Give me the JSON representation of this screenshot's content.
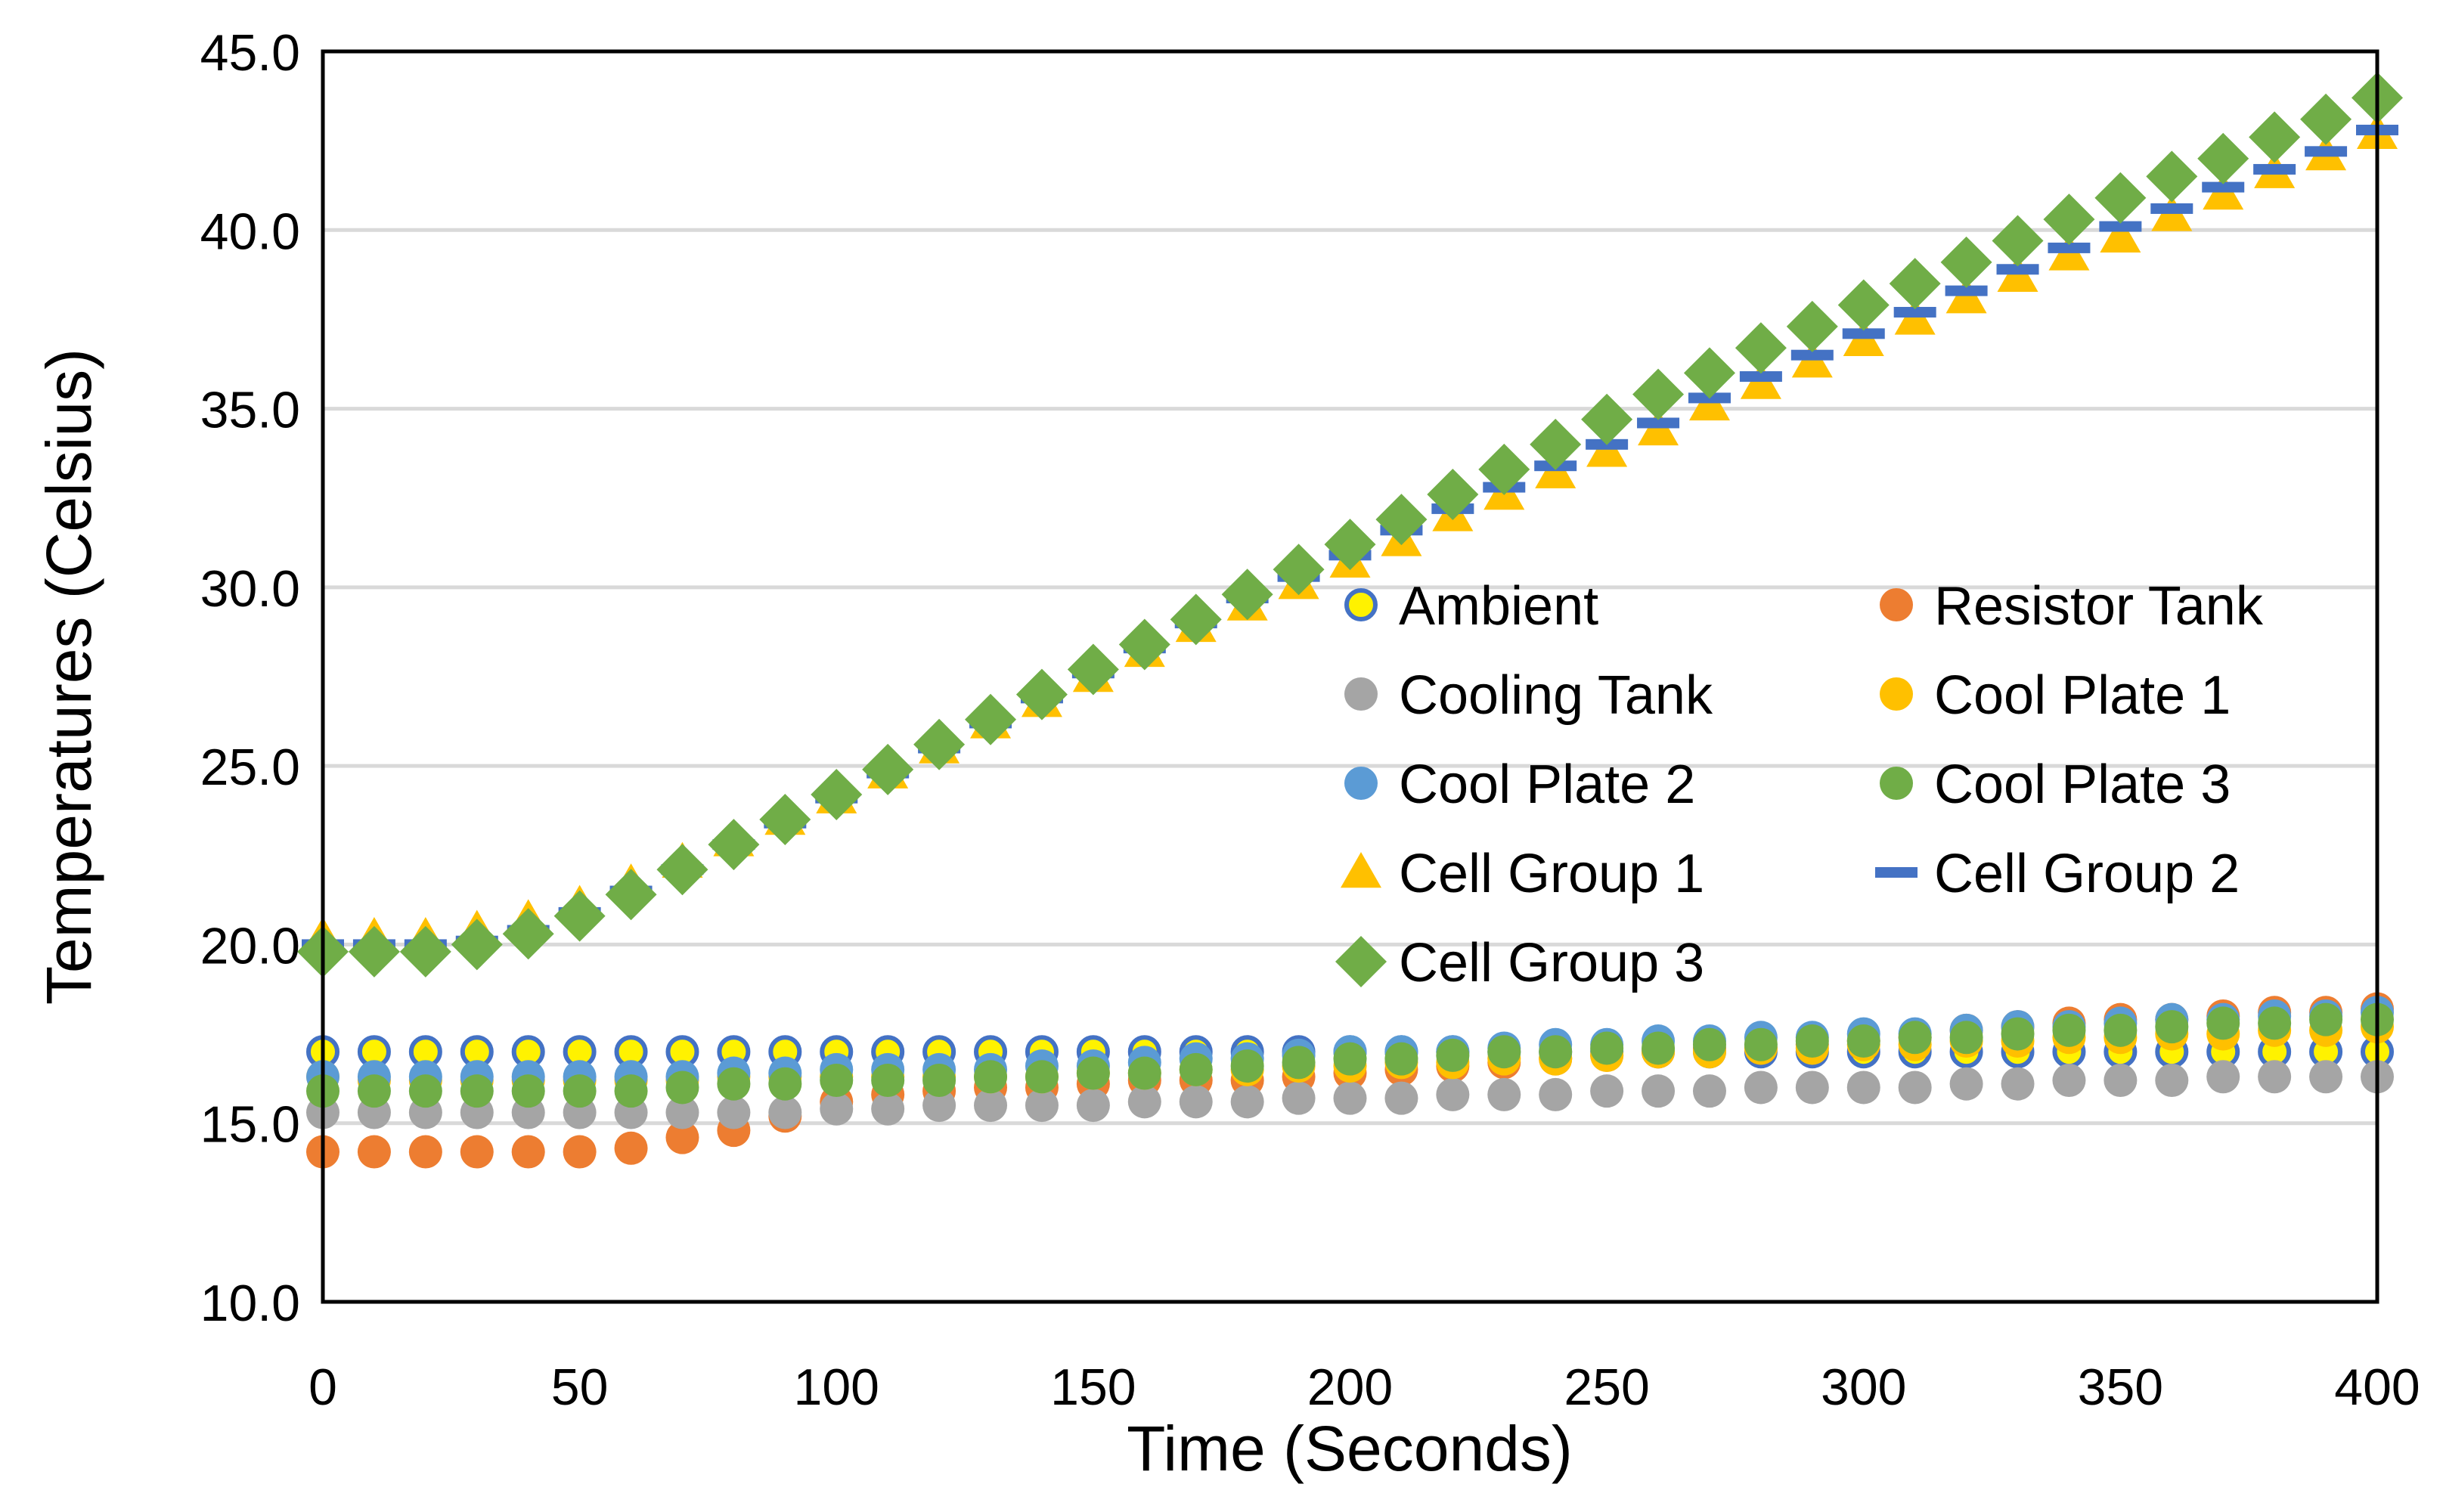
{
  "chart_data": {
    "type": "scatter",
    "title": "",
    "xlabel": "Time (Seconds)",
    "ylabel": "Temperatures (Celsius)",
    "xlim": [
      0,
      400
    ],
    "ylim": [
      10,
      45
    ],
    "x_ticks": [
      "0",
      "50",
      "100",
      "150",
      "200",
      "250",
      "300",
      "350",
      "400"
    ],
    "y_ticks": [
      "10.0",
      "15.0",
      "20.0",
      "25.0",
      "30.0",
      "35.0",
      "40.0",
      "45.0"
    ],
    "grid": "horizontal",
    "legend_position": "center-right",
    "x": [
      0,
      10,
      20,
      30,
      40,
      50,
      60,
      70,
      80,
      90,
      100,
      110,
      120,
      130,
      140,
      150,
      160,
      170,
      180,
      190,
      200,
      210,
      220,
      230,
      240,
      250,
      260,
      270,
      280,
      290,
      300,
      310,
      320,
      330,
      340,
      350,
      360,
      370,
      380,
      390,
      400
    ],
    "series": [
      {
        "name": "Ambient",
        "marker": "circle-open",
        "color": "#FFF200",
        "edge": "#4472C4",
        "values": [
          17.0,
          17.0,
          17.0,
          17.0,
          17.0,
          17.0,
          17.0,
          17.0,
          17.0,
          17.0,
          17.0,
          17.0,
          17.0,
          17.0,
          17.0,
          17.0,
          17.0,
          17.0,
          17.0,
          17.0,
          17.0,
          17.0,
          17.0,
          17.0,
          17.0,
          17.0,
          17.0,
          17.0,
          17.0,
          17.0,
          17.0,
          17.0,
          17.0,
          17.0,
          17.0,
          17.0,
          17.0,
          17.0,
          17.0,
          17.0,
          17.0
        ]
      },
      {
        "name": "Resistor Tank",
        "marker": "circle",
        "color": "#ED7D31",
        "values": [
          14.2,
          14.2,
          14.2,
          14.2,
          14.2,
          14.2,
          14.3,
          14.6,
          14.8,
          15.2,
          15.6,
          15.8,
          15.9,
          16.0,
          16.0,
          16.1,
          16.2,
          16.2,
          16.2,
          16.3,
          16.4,
          16.5,
          16.6,
          16.7,
          16.8,
          16.9,
          17.0,
          17.1,
          17.1,
          17.2,
          17.3,
          17.4,
          17.6,
          17.7,
          17.8,
          17.9,
          17.9,
          18.0,
          18.1,
          18.1,
          18.2
        ]
      },
      {
        "name": "Cooling Tank",
        "marker": "circle",
        "color": "#A5A5A5",
        "values": [
          15.3,
          15.3,
          15.3,
          15.3,
          15.3,
          15.3,
          15.3,
          15.3,
          15.3,
          15.3,
          15.4,
          15.4,
          15.5,
          15.5,
          15.5,
          15.5,
          15.6,
          15.6,
          15.6,
          15.7,
          15.7,
          15.7,
          15.8,
          15.8,
          15.8,
          15.9,
          15.9,
          15.9,
          16.0,
          16.0,
          16.0,
          16.0,
          16.1,
          16.1,
          16.2,
          16.2,
          16.2,
          16.3,
          16.3,
          16.3,
          16.3
        ]
      },
      {
        "name": "Cool Plate 1",
        "marker": "circle",
        "color": "#FFC000",
        "values": [
          16.3,
          16.2,
          16.2,
          16.2,
          16.2,
          16.2,
          16.2,
          16.2,
          16.3,
          16.3,
          16.3,
          16.3,
          16.3,
          16.3,
          16.3,
          16.4,
          16.4,
          16.5,
          16.5,
          16.6,
          16.6,
          16.7,
          16.7,
          16.8,
          16.8,
          16.9,
          17.0,
          17.0,
          17.1,
          17.1,
          17.2,
          17.2,
          17.3,
          17.3,
          17.4,
          17.4,
          17.5,
          17.5,
          17.6,
          17.6,
          17.7
        ]
      },
      {
        "name": "Cool Plate 2",
        "marker": "circle",
        "color": "#5B9BD5",
        "values": [
          16.3,
          16.3,
          16.3,
          16.3,
          16.3,
          16.3,
          16.3,
          16.3,
          16.4,
          16.4,
          16.5,
          16.5,
          16.5,
          16.5,
          16.6,
          16.6,
          16.7,
          16.8,
          16.8,
          16.9,
          17.0,
          17.0,
          17.0,
          17.1,
          17.2,
          17.2,
          17.3,
          17.3,
          17.4,
          17.4,
          17.5,
          17.5,
          17.6,
          17.7,
          17.7,
          17.8,
          17.9,
          17.9,
          18.0,
          18.0,
          18.1
        ]
      },
      {
        "name": "Cool Plate 3",
        "marker": "circle",
        "color": "#70AD47",
        "values": [
          15.9,
          15.9,
          15.9,
          15.9,
          15.9,
          15.9,
          15.9,
          16.0,
          16.1,
          16.1,
          16.2,
          16.2,
          16.2,
          16.3,
          16.3,
          16.4,
          16.4,
          16.5,
          16.6,
          16.7,
          16.8,
          16.8,
          16.9,
          17.0,
          17.0,
          17.1,
          17.1,
          17.2,
          17.2,
          17.3,
          17.3,
          17.4,
          17.4,
          17.5,
          17.6,
          17.6,
          17.7,
          17.8,
          17.8,
          17.9,
          17.9
        ]
      },
      {
        "name": "Cell Group 1",
        "marker": "triangle",
        "color": "#FFC000",
        "values": [
          20.2,
          20.2,
          20.2,
          20.4,
          20.7,
          21.1,
          21.7,
          22.3,
          22.9,
          23.5,
          24.1,
          24.8,
          25.5,
          26.2,
          26.8,
          27.5,
          28.2,
          28.9,
          29.5,
          30.1,
          30.7,
          31.3,
          32.0,
          32.6,
          33.2,
          33.8,
          34.4,
          35.1,
          35.7,
          36.3,
          36.9,
          37.5,
          38.1,
          38.7,
          39.3,
          39.8,
          40.4,
          41.0,
          41.6,
          42.1,
          42.7
        ]
      },
      {
        "name": "Cell Group 2",
        "marker": "dash",
        "color": "#4472C4",
        "values": [
          20.0,
          20.0,
          20.0,
          20.1,
          20.4,
          20.9,
          21.5,
          22.1,
          22.8,
          23.4,
          24.1,
          24.8,
          25.5,
          26.2,
          26.9,
          27.6,
          28.3,
          29.0,
          29.7,
          30.3,
          30.9,
          31.6,
          32.2,
          32.8,
          33.4,
          34.0,
          34.6,
          35.3,
          35.9,
          36.5,
          37.1,
          37.7,
          38.3,
          38.9,
          39.5,
          40.1,
          40.6,
          41.2,
          41.7,
          42.2,
          42.8
        ]
      },
      {
        "name": "Cell Group 3",
        "marker": "diamond",
        "color": "#70AD47",
        "values": [
          19.8,
          19.8,
          19.8,
          20.0,
          20.3,
          20.8,
          21.4,
          22.1,
          22.8,
          23.5,
          24.2,
          24.9,
          25.6,
          26.3,
          27.0,
          27.7,
          28.4,
          29.1,
          29.8,
          30.5,
          31.2,
          31.9,
          32.6,
          33.3,
          34.0,
          34.7,
          35.4,
          36.0,
          36.7,
          37.3,
          37.9,
          38.5,
          39.1,
          39.7,
          40.3,
          40.9,
          41.5,
          42.0,
          42.6,
          43.1,
          43.7
        ]
      }
    ]
  }
}
